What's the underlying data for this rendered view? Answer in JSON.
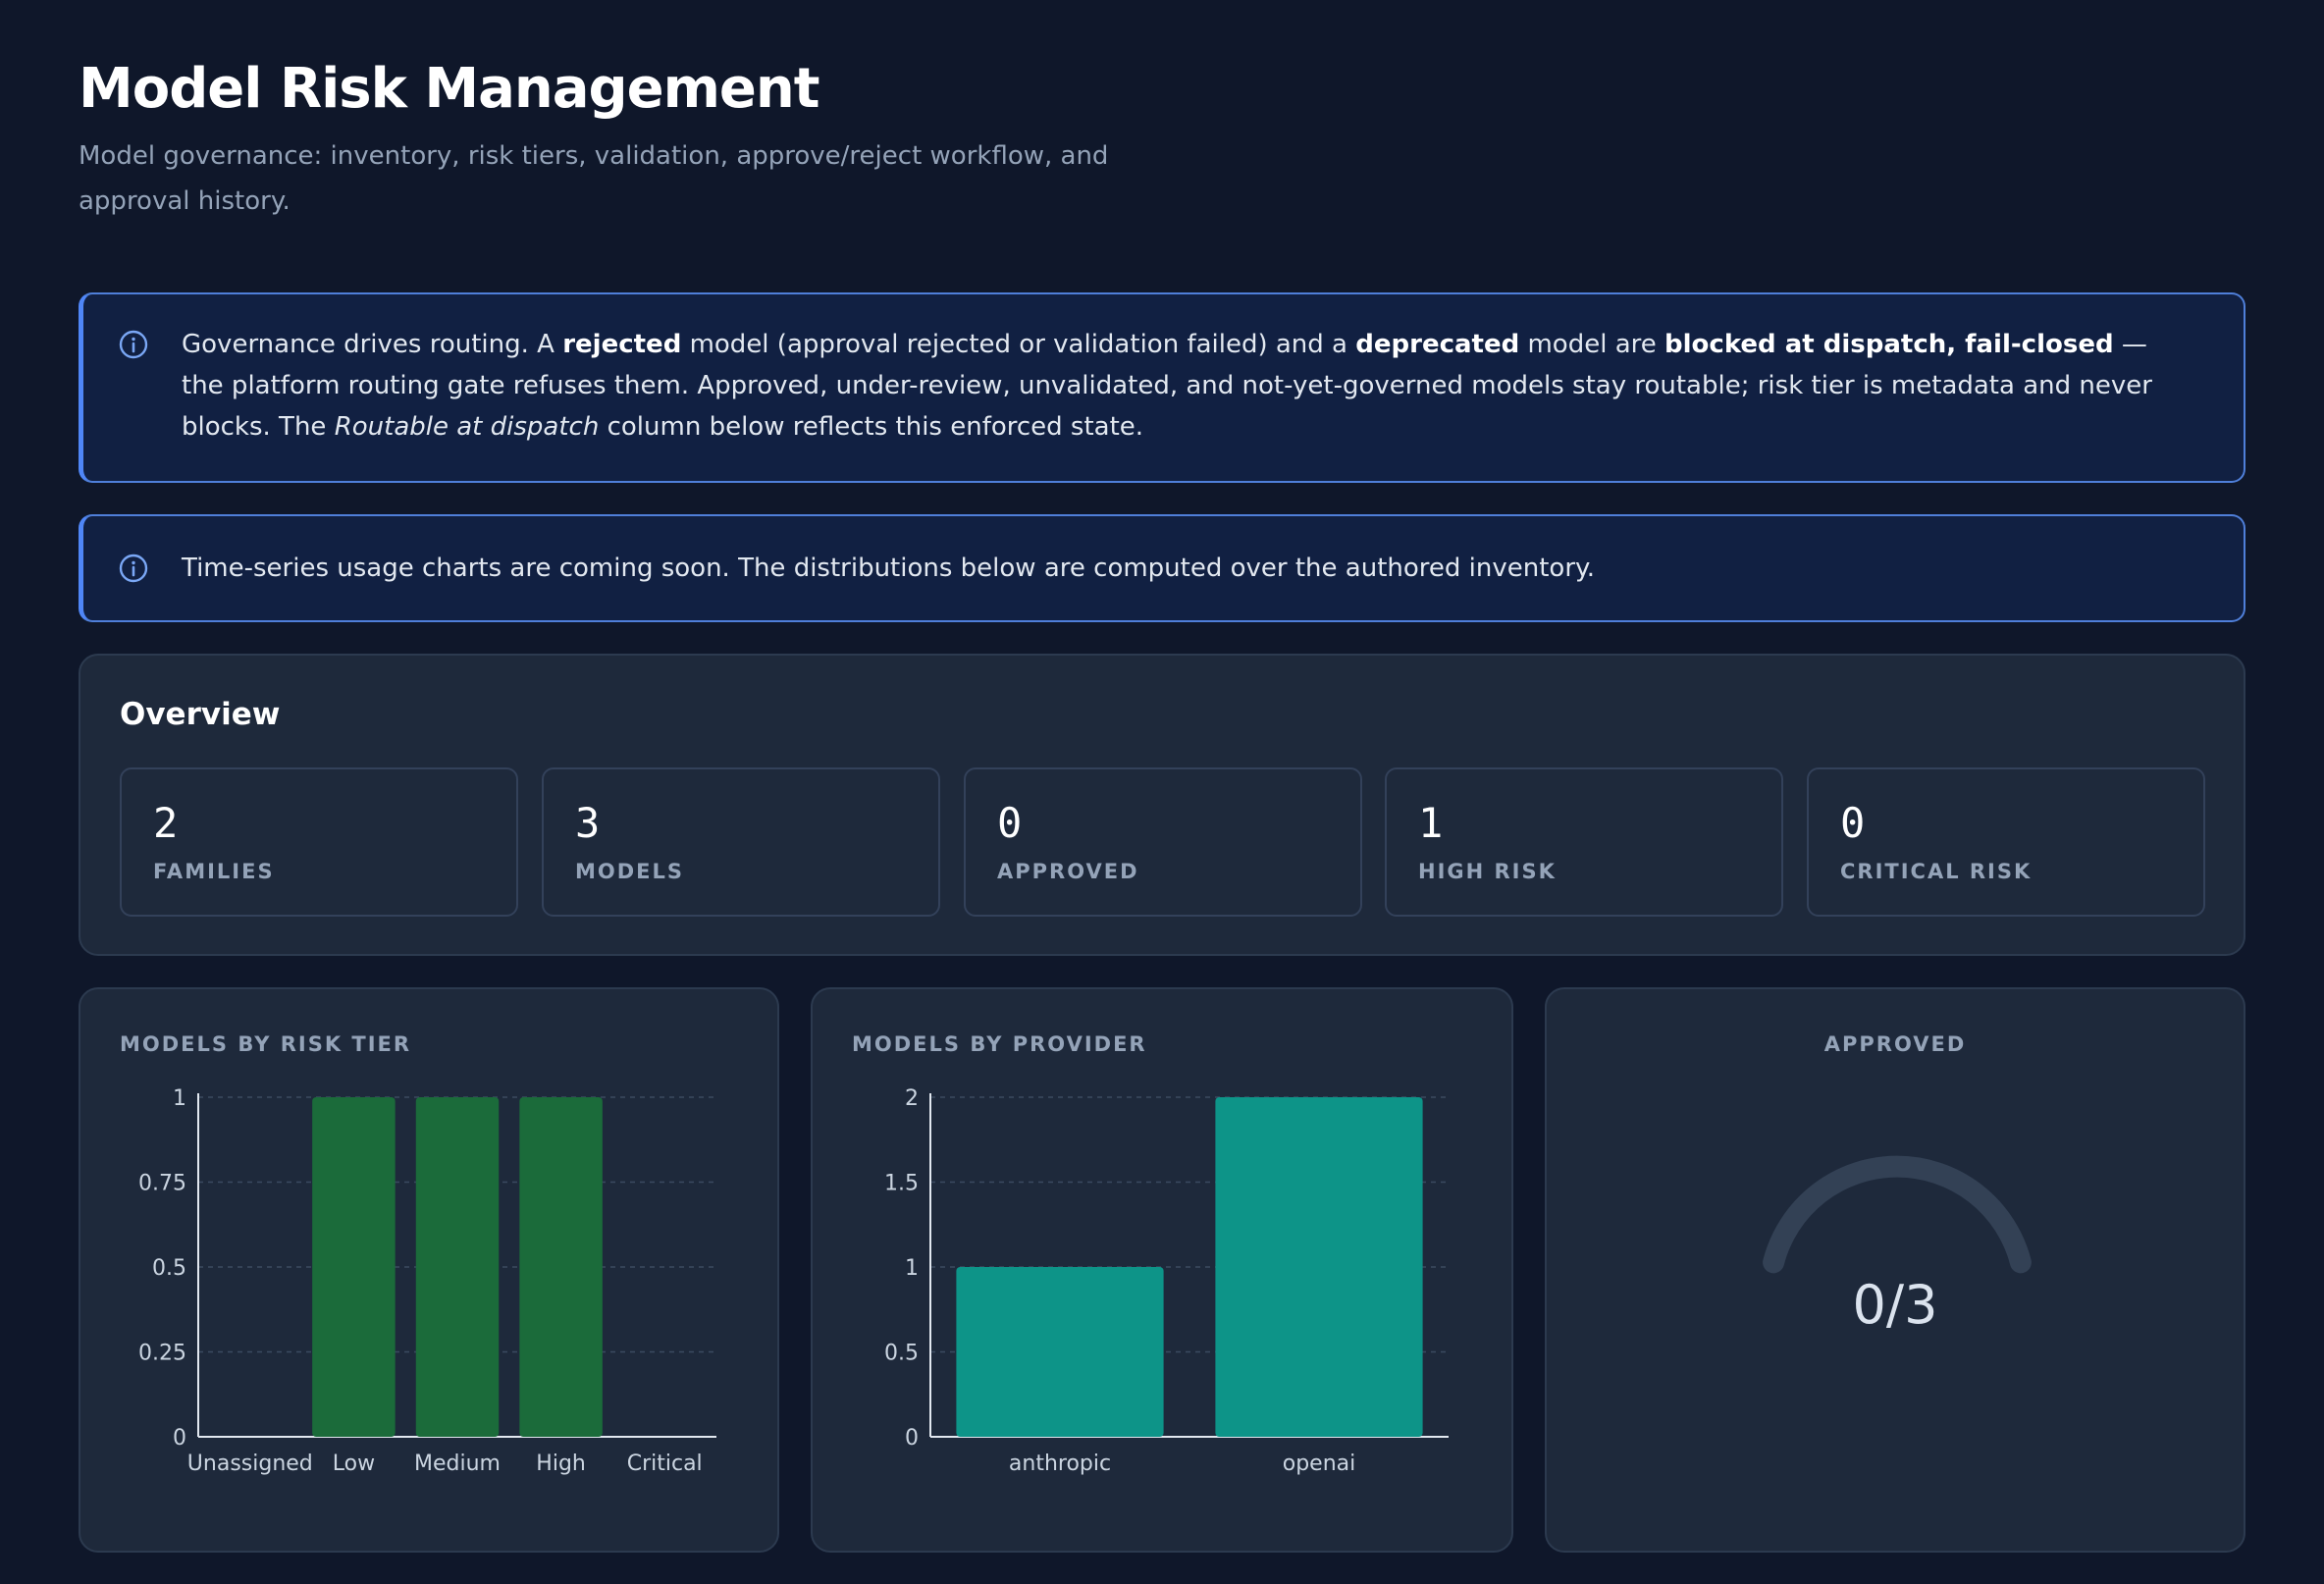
{
  "header": {
    "title": "Model Risk Management",
    "subtitle": "Model governance: inventory, risk tiers, validation, approve/reject workflow, and approval history."
  },
  "banners": {
    "routing": {
      "icon": "info-icon",
      "t1": "Governance drives routing. A ",
      "b1": "rejected",
      "t2": " model (approval rejected or validation failed) and a ",
      "b2": "deprecated",
      "t3": " model are ",
      "b3": "blocked at dispatch, fail-closed",
      "t4": " — the platform routing gate refuses them. Approved, under-review, unvalidated, and not-yet-governed models stay routable; risk tier is metadata and never blocks. The ",
      "i1": "Routable at dispatch",
      "t5": " column below reflects this enforced state."
    },
    "usage": {
      "icon": "info-icon",
      "text": "Time-series usage charts are coming soon. The distributions below are computed over the authored inventory."
    }
  },
  "overview": {
    "title": "Overview",
    "stats": [
      {
        "value": "2",
        "label": "FAMILIES"
      },
      {
        "value": "3",
        "label": "MODELS"
      },
      {
        "value": "0",
        "label": "APPROVED"
      },
      {
        "value": "1",
        "label": "HIGH RISK"
      },
      {
        "value": "0",
        "label": "CRITICAL RISK"
      }
    ]
  },
  "colors": {
    "background": "#0f172a",
    "card": "#1e293b",
    "banner_border": "#4f86f7",
    "risk_bar": "#1b6b3a",
    "provider_bar": "#0d9488",
    "gauge_track": "#334155"
  },
  "chart_data": [
    {
      "type": "bar",
      "title": "MODELS BY RISK TIER",
      "categories": [
        "Unassigned",
        "Low",
        "Medium",
        "High",
        "Critical"
      ],
      "values": [
        0,
        1,
        1,
        1,
        0
      ],
      "yticks": [
        "0",
        "0.25",
        "0.5",
        "0.75",
        "1"
      ],
      "ylim": [
        0,
        1
      ],
      "grid": true
    },
    {
      "type": "bar",
      "title": "MODELS BY PROVIDER",
      "categories": [
        "anthropic",
        "openai"
      ],
      "values": [
        1,
        2
      ],
      "yticks": [
        "0",
        "0.5",
        "1",
        "1.5",
        "2"
      ],
      "ylim": [
        0,
        2
      ],
      "grid": true
    },
    {
      "type": "gauge",
      "title": "APPROVED",
      "value": 0,
      "max": 3,
      "display": "0/3"
    }
  ]
}
